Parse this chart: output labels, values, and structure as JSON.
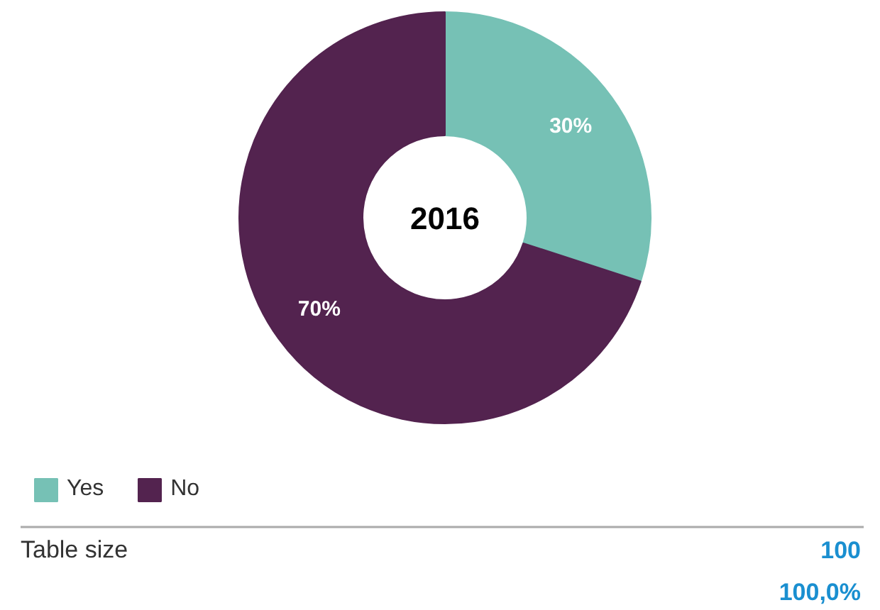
{
  "chart_data": {
    "type": "donut",
    "title": "2016",
    "categories": [
      "Yes",
      "No"
    ],
    "values": [
      30,
      70
    ],
    "colors": [
      "#76c1b5",
      "#53234f"
    ],
    "value_labels": [
      "30%",
      "70%"
    ],
    "legend": "bottom left",
    "annotations": [
      "Table size",
      "100",
      "100,0%"
    ]
  }
}
